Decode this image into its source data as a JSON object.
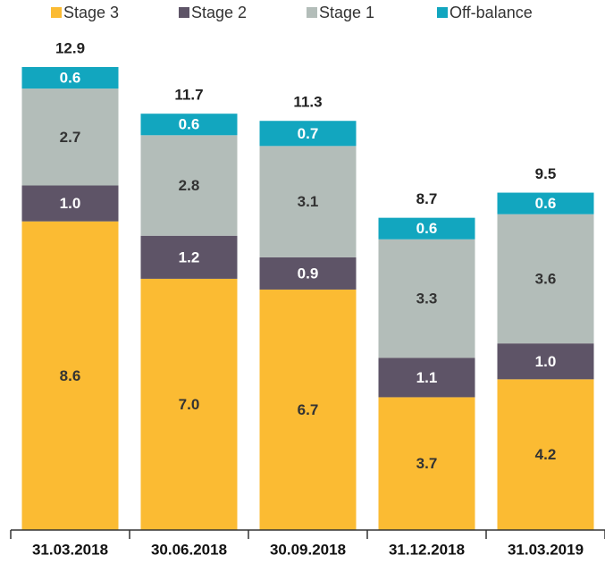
{
  "chart_data": {
    "type": "stacked_bar",
    "categories": [
      "31.03.2018",
      "30.06.2018",
      "30.09.2018",
      "31.12.2018",
      "31.03.2019"
    ],
    "series": [
      {
        "name": "Stage 3",
        "color": "#FBBB33",
        "values": [
          8.6,
          7.0,
          6.7,
          3.7,
          4.2
        ],
        "value_labels": [
          "8.6",
          "7.0",
          "6.7",
          "3.7",
          "4.2"
        ]
      },
      {
        "name": "Stage 2",
        "color": "#5E5467",
        "values": [
          1.0,
          1.2,
          0.9,
          1.1,
          1.0
        ],
        "value_labels": [
          "1.0",
          "1.2",
          "0.9",
          "1.1",
          "1.0"
        ]
      },
      {
        "name": "Stage 1",
        "color": "#B3BDB9",
        "values": [
          2.7,
          2.8,
          3.1,
          3.3,
          3.6
        ],
        "value_labels": [
          "2.7",
          "2.8",
          "3.1",
          "3.3",
          "3.6"
        ]
      },
      {
        "name": "Off-balance",
        "color": "#12A6BF",
        "values": [
          0.6,
          0.6,
          0.7,
          0.6,
          0.6
        ],
        "value_labels": [
          "0.6",
          "0.6",
          "0.7",
          "0.6",
          "0.6"
        ]
      }
    ],
    "totals": [
      12.9,
      11.7,
      11.3,
      8.7,
      9.5
    ],
    "legend": "top"
  }
}
